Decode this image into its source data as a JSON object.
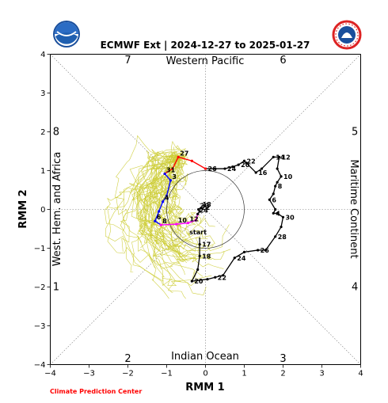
{
  "logos": {
    "left": {
      "icon": "noaa-logo-icon",
      "text": "NOAA"
    },
    "right": {
      "icon": "nws-logo-icon",
      "text": "NATIONAL WEATHER SERVICE"
    }
  },
  "credit": "Climate Prediction Center",
  "chart_data": {
    "type": "line",
    "title": "ECMWF Ext | 2024-12-27 to 2025-01-27",
    "xlabel": "RMM 1",
    "ylabel": "RMM 2",
    "xlim": [
      -4,
      4
    ],
    "ylim": [
      -4,
      4
    ],
    "xticks": [
      -4,
      -3,
      -2,
      -1,
      0,
      1,
      2,
      3,
      4
    ],
    "yticks": [
      -4,
      -3,
      -2,
      -1,
      0,
      1,
      2,
      3,
      4
    ],
    "grid": false,
    "unit_circle": true,
    "regions": {
      "top": "Western Pacific",
      "bottom": "Indian Ocean",
      "left": "West. Hem. and Africa",
      "right": "Maritime Continent"
    },
    "phases": [
      {
        "label": "1",
        "x": -3.85,
        "y": -2.0
      },
      {
        "label": "2",
        "x": -2.0,
        "y": -3.85
      },
      {
        "label": "3",
        "x": 2.0,
        "y": -3.85
      },
      {
        "label": "4",
        "x": 3.85,
        "y": -2.0
      },
      {
        "label": "5",
        "x": 3.85,
        "y": 2.0
      },
      {
        "label": "6",
        "x": 2.0,
        "y": 3.85
      },
      {
        "label": "7",
        "x": -2.0,
        "y": 3.85
      },
      {
        "label": "8",
        "x": -3.85,
        "y": 2.0
      }
    ],
    "observed": {
      "start_label": "start",
      "start": [
        -0.15,
        -0.72
      ],
      "points": [
        {
          "x": -0.15,
          "y": -0.9,
          "label": "17"
        },
        {
          "x": -0.15,
          "y": -1.2,
          "label": "18"
        },
        {
          "x": -0.2,
          "y": -1.55,
          "label": ""
        },
        {
          "x": -0.35,
          "y": -1.85,
          "label": "20"
        },
        {
          "x": 0.05,
          "y": -1.8,
          "label": ""
        },
        {
          "x": 0.25,
          "y": -1.75,
          "label": "22"
        },
        {
          "x": 0.45,
          "y": -1.7,
          "label": ""
        },
        {
          "x": 0.75,
          "y": -1.25,
          "label": "24"
        },
        {
          "x": 1.0,
          "y": -1.1,
          "label": ""
        },
        {
          "x": 1.35,
          "y": -1.05,
          "label": "26"
        },
        {
          "x": 1.55,
          "y": -1.05,
          "label": ""
        },
        {
          "x": 1.8,
          "y": -0.7,
          "label": "28"
        },
        {
          "x": 1.95,
          "y": -0.45,
          "label": ""
        },
        {
          "x": 2.0,
          "y": -0.2,
          "label": "30"
        },
        {
          "x": 1.85,
          "y": -0.1,
          "label": ""
        },
        {
          "x": 1.75,
          "y": -0.1,
          "label": "4"
        },
        {
          "x": 1.8,
          "y": 0.0,
          "label": ""
        },
        {
          "x": 1.65,
          "y": 0.25,
          "label": "6"
        },
        {
          "x": 1.75,
          "y": 0.4,
          "label": ""
        },
        {
          "x": 1.8,
          "y": 0.6,
          "label": "8"
        },
        {
          "x": 1.85,
          "y": 0.7,
          "label": ""
        },
        {
          "x": 1.95,
          "y": 0.85,
          "label": "10"
        },
        {
          "x": 1.85,
          "y": 1.05,
          "label": ""
        },
        {
          "x": 1.9,
          "y": 1.35,
          "label": "12"
        },
        {
          "x": 1.75,
          "y": 1.35,
          "label": "14"
        },
        {
          "x": 1.45,
          "y": 1.05,
          "label": ""
        },
        {
          "x": 1.3,
          "y": 0.95,
          "label": "16"
        },
        {
          "x": 1.05,
          "y": 1.2,
          "label": ""
        },
        {
          "x": 1.0,
          "y": 1.25,
          "label": "22"
        },
        {
          "x": 0.85,
          "y": 1.15,
          "label": "20"
        },
        {
          "x": 0.7,
          "y": 1.1,
          "label": ""
        },
        {
          "x": 0.5,
          "y": 1.05,
          "label": "24"
        },
        {
          "x": 0.25,
          "y": 1.05,
          "label": ""
        },
        {
          "x": 0.0,
          "y": 1.05,
          "label": "26"
        }
      ]
    },
    "forecast_ensemble": {
      "members": 50,
      "color": "#cccc33"
    },
    "forecast_mean": [
      {
        "color": "#ff0000",
        "points": [
          {
            "x": 0.0,
            "y": 1.05,
            "label": ""
          },
          {
            "x": -0.35,
            "y": 1.25,
            "label": ""
          },
          {
            "x": -0.7,
            "y": 1.35,
            "label": "27"
          },
          {
            "x": -0.85,
            "y": 1.05,
            "label": ""
          },
          {
            "x": -1.05,
            "y": 0.92,
            "label": "31"
          }
        ]
      },
      {
        "color": "#0000ff",
        "points": [
          {
            "x": -1.05,
            "y": 0.92,
            "label": ""
          },
          {
            "x": -0.9,
            "y": 0.75,
            "label": "3"
          },
          {
            "x": -1.0,
            "y": 0.35,
            "label": ""
          },
          {
            "x": -1.1,
            "y": 0.2,
            "label": "4"
          },
          {
            "x": -1.2,
            "y": -0.05,
            "label": ""
          },
          {
            "x": -1.3,
            "y": -0.3,
            "label": "6"
          },
          {
            "x": -1.15,
            "y": -0.4,
            "label": "8"
          }
        ]
      },
      {
        "color": "#ff00ff",
        "points": [
          {
            "x": -1.15,
            "y": -0.4,
            "label": ""
          },
          {
            "x": -0.75,
            "y": -0.38,
            "label": "10"
          },
          {
            "x": -0.45,
            "y": -0.35,
            "label": "12"
          },
          {
            "x": -0.25,
            "y": -0.28,
            "label": ""
          },
          {
            "x": -0.2,
            "y": -0.12,
            "label": ""
          }
        ]
      },
      {
        "color": "#000000",
        "points": [
          {
            "x": -0.2,
            "y": -0.12,
            "label": "24"
          },
          {
            "x": -0.15,
            "y": -0.05,
            "label": "22"
          },
          {
            "x": -0.18,
            "y": 0.0,
            "label": "20"
          },
          {
            "x": -0.12,
            "y": 0.03,
            "label": "18"
          }
        ]
      }
    ]
  }
}
